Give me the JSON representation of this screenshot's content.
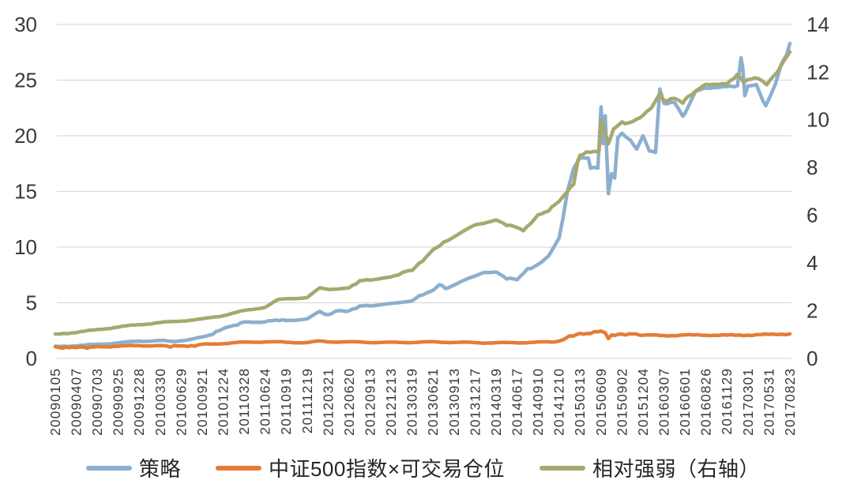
{
  "chart_data": {
    "type": "line",
    "title": "",
    "xlabel": "",
    "ylabel": "",
    "grid": true,
    "legend_position": "bottom",
    "background_color": "#ffffff",
    "gridline_color": "#d9d9d9",
    "tick_label_color": "#3a3a3a",
    "x_labels": [
      "20090105",
      "20090407",
      "20090703",
      "20090925",
      "20091228",
      "20100330",
      "20100629",
      "20100921",
      "20101224",
      "20110328",
      "20110624",
      "20110919",
      "20111219",
      "20120321",
      "20120620",
      "20120913",
      "20121213",
      "20130319",
      "20130621",
      "20130913",
      "20131217",
      "20140319",
      "20140617",
      "20140910",
      "20141210",
      "20150313",
      "20150609",
      "20150902",
      "20151204",
      "20160307",
      "20160601",
      "20160826",
      "20161129",
      "20170301",
      "20170531",
      "20170823"
    ],
    "axes": {
      "left": {
        "min": 0,
        "max": 30,
        "step": 5,
        "ticks": [
          0,
          5,
          10,
          15,
          20,
          25,
          30
        ]
      },
      "right": {
        "min": 0,
        "max": 14,
        "step": 2,
        "ticks": [
          0,
          2,
          4,
          6,
          8,
          10,
          12,
          14
        ]
      }
    },
    "series": [
      {
        "id": "strategy",
        "name": "策略",
        "axis": "left",
        "color": "#8CAFCF",
        "points": [
          [
            0,
            1.05
          ],
          [
            1,
            1.15
          ],
          [
            2,
            1.25
          ],
          [
            3,
            1.4
          ],
          [
            4,
            1.55
          ],
          [
            5,
            1.6
          ],
          [
            5.6,
            1.5
          ],
          [
            6,
            1.6
          ],
          [
            7,
            1.9
          ],
          [
            7.5,
            2.2
          ],
          [
            8,
            2.7
          ],
          [
            8.5,
            2.95
          ],
          [
            9,
            3.25
          ],
          [
            10,
            3.3
          ],
          [
            10.5,
            3.45
          ],
          [
            11,
            3.4
          ],
          [
            12,
            3.55
          ],
          [
            12.6,
            4.2
          ],
          [
            12.85,
            3.9
          ],
          [
            13,
            3.95
          ],
          [
            13.5,
            4.3
          ],
          [
            14,
            4.25
          ],
          [
            14.5,
            4.7
          ],
          [
            15,
            4.75
          ],
          [
            16,
            4.9
          ],
          [
            17,
            5.2
          ],
          [
            17.5,
            5.75
          ],
          [
            18,
            6.1
          ],
          [
            18.3,
            6.65
          ],
          [
            18.6,
            6.3
          ],
          [
            19,
            6.6
          ],
          [
            19.6,
            7.1
          ],
          [
            20,
            7.4
          ],
          [
            20.4,
            7.75
          ],
          [
            21,
            7.75
          ],
          [
            21.5,
            7.2
          ],
          [
            22,
            7.1
          ],
          [
            22.5,
            8.0
          ],
          [
            23,
            8.4
          ],
          [
            23.5,
            9.2
          ],
          [
            24,
            10.8
          ],
          [
            24.2,
            12.7
          ],
          [
            24.4,
            15.0
          ],
          [
            24.7,
            17.1
          ],
          [
            25,
            18.0
          ],
          [
            25.4,
            18.0
          ],
          [
            25.5,
            17.1
          ],
          [
            25.85,
            17.1
          ],
          [
            26,
            22.6
          ],
          [
            26.1,
            19.3
          ],
          [
            26.2,
            21.8
          ],
          [
            26.35,
            14.8
          ],
          [
            26.5,
            16.6
          ],
          [
            26.65,
            16.2
          ],
          [
            26.8,
            19.8
          ],
          [
            27,
            20.2
          ],
          [
            27.4,
            19.6
          ],
          [
            27.7,
            18.8
          ],
          [
            28,
            20.0
          ],
          [
            28.3,
            18.7
          ],
          [
            28.6,
            18.5
          ],
          [
            28.8,
            24.2
          ],
          [
            29,
            22.9
          ],
          [
            29.5,
            23.0
          ],
          [
            29.9,
            21.8
          ],
          [
            30,
            22.0
          ],
          [
            30.5,
            24.0
          ],
          [
            31,
            24.3
          ],
          [
            32,
            24.4
          ],
          [
            32.5,
            24.5
          ],
          [
            32.67,
            27.0
          ],
          [
            32.75,
            26.2
          ],
          [
            32.85,
            23.6
          ],
          [
            33,
            24.5
          ],
          [
            33.4,
            24.6
          ],
          [
            33.7,
            23.2
          ],
          [
            33.85,
            22.7
          ],
          [
            34,
            23.3
          ],
          [
            34.3,
            24.6
          ],
          [
            34.6,
            26.5
          ],
          [
            34.85,
            27.3
          ],
          [
            35,
            28.3
          ]
        ]
      },
      {
        "id": "csi500-x-tradable-position",
        "name": "中证500指数×可交易仓位",
        "axis": "left",
        "color": "#E37D35",
        "points": [
          [
            0,
            1.0
          ],
          [
            0.5,
            0.96
          ],
          [
            1,
            1.02
          ],
          [
            1.5,
            0.98
          ],
          [
            2,
            1.05
          ],
          [
            3,
            1.1
          ],
          [
            4,
            1.15
          ],
          [
            5,
            1.15
          ],
          [
            5.5,
            1.08
          ],
          [
            6,
            1.15
          ],
          [
            6.3,
            1.08
          ],
          [
            7,
            1.25
          ],
          [
            8,
            1.35
          ],
          [
            9,
            1.45
          ],
          [
            10,
            1.5
          ],
          [
            11,
            1.45
          ],
          [
            12,
            1.42
          ],
          [
            12.6,
            1.55
          ],
          [
            13,
            1.5
          ],
          [
            14,
            1.48
          ],
          [
            15,
            1.45
          ],
          [
            16,
            1.43
          ],
          [
            17,
            1.45
          ],
          [
            18,
            1.48
          ],
          [
            19,
            1.45
          ],
          [
            20,
            1.42
          ],
          [
            21,
            1.4
          ],
          [
            22,
            1.42
          ],
          [
            23,
            1.45
          ],
          [
            23.8,
            1.5
          ],
          [
            24.2,
            1.7
          ],
          [
            24.5,
            2.0
          ],
          [
            25,
            2.2
          ],
          [
            25.5,
            2.25
          ],
          [
            26,
            2.5
          ],
          [
            26.2,
            2.3
          ],
          [
            26.35,
            1.78
          ],
          [
            26.5,
            2.1
          ],
          [
            27,
            2.15
          ],
          [
            27.5,
            2.2
          ],
          [
            28,
            2.1
          ],
          [
            29,
            2.05
          ],
          [
            30,
            2.1
          ],
          [
            31,
            2.1
          ],
          [
            32,
            2.08
          ],
          [
            33,
            2.1
          ],
          [
            34,
            2.15
          ],
          [
            35,
            2.2
          ]
        ]
      },
      {
        "id": "relative-strength-right-axis",
        "name": "相对强弱（右轴）",
        "axis": "right",
        "color": "#A6A86F",
        "points": [
          [
            0,
            1.0
          ],
          [
            1,
            1.1
          ],
          [
            2,
            1.2
          ],
          [
            3,
            1.32
          ],
          [
            4,
            1.42
          ],
          [
            5,
            1.5
          ],
          [
            6,
            1.57
          ],
          [
            7,
            1.65
          ],
          [
            8,
            1.8
          ],
          [
            9,
            2.0
          ],
          [
            10,
            2.15
          ],
          [
            10.6,
            2.45
          ],
          [
            11,
            2.5
          ],
          [
            12,
            2.55
          ],
          [
            12.6,
            2.95
          ],
          [
            13,
            2.9
          ],
          [
            14,
            2.95
          ],
          [
            14.5,
            3.25
          ],
          [
            15,
            3.3
          ],
          [
            16,
            3.4
          ],
          [
            16.7,
            3.65
          ],
          [
            17,
            3.7
          ],
          [
            17.5,
            4.1
          ],
          [
            18,
            4.55
          ],
          [
            18.5,
            4.85
          ],
          [
            19,
            5.1
          ],
          [
            20,
            5.6
          ],
          [
            21,
            5.8
          ],
          [
            21.5,
            5.6
          ],
          [
            22,
            5.5
          ],
          [
            22.3,
            5.35
          ],
          [
            23,
            6.0
          ],
          [
            23.5,
            6.2
          ],
          [
            24,
            6.6
          ],
          [
            24.4,
            7.0
          ],
          [
            24.7,
            7.3
          ],
          [
            24.9,
            8.3
          ],
          [
            25,
            8.5
          ],
          [
            25.3,
            8.65
          ],
          [
            25.9,
            8.65
          ],
          [
            26,
            10.0
          ],
          [
            26.15,
            9.6
          ],
          [
            26.35,
            9.0
          ],
          [
            26.6,
            9.6
          ],
          [
            27,
            9.9
          ],
          [
            27.3,
            9.85
          ],
          [
            27.7,
            10.0
          ],
          [
            28,
            10.2
          ],
          [
            28.4,
            10.5
          ],
          [
            28.8,
            11.1
          ],
          [
            29,
            10.8
          ],
          [
            29.5,
            10.9
          ],
          [
            29.9,
            10.7
          ],
          [
            30,
            10.85
          ],
          [
            30.5,
            11.2
          ],
          [
            31,
            11.5
          ],
          [
            32,
            11.5
          ],
          [
            32.5,
            11.9
          ],
          [
            32.8,
            11.6
          ],
          [
            33,
            11.7
          ],
          [
            33.5,
            11.75
          ],
          [
            33.9,
            11.5
          ],
          [
            34,
            11.6
          ],
          [
            34.4,
            12.0
          ],
          [
            34.7,
            12.45
          ],
          [
            35,
            12.85
          ]
        ]
      }
    ],
    "legend_items": [
      "策略",
      "中证500指数×可交易仓位",
      "相对强弱（右轴）"
    ]
  }
}
